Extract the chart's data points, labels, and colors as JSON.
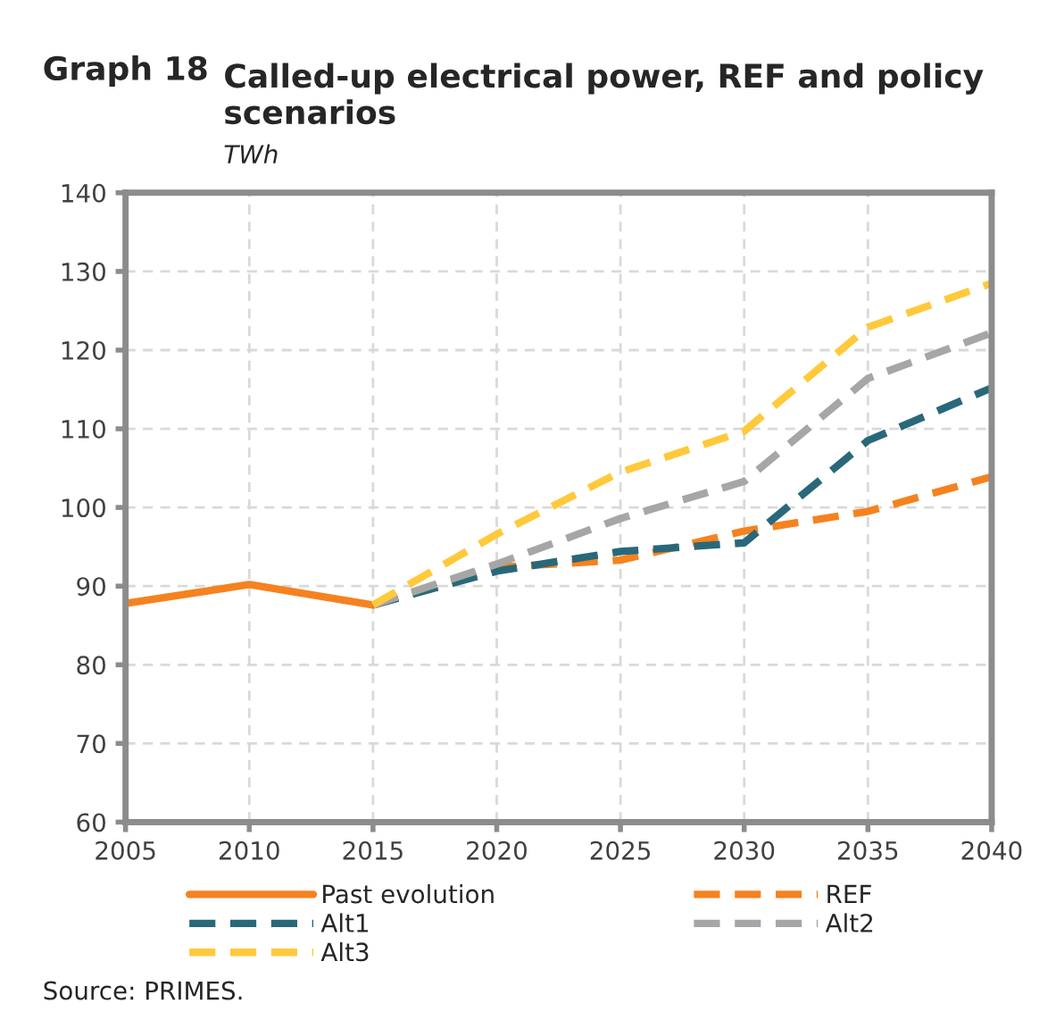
{
  "chart_data": {
    "type": "line",
    "title": "Called-up electrical power, REF and policy scenarios",
    "subtitle": "TWh",
    "annotations": [
      "Graph 18",
      "Source: PRIMES."
    ],
    "x": [
      2005,
      2010,
      2015,
      2020,
      2025,
      2030,
      2035,
      2040
    ],
    "series": [
      {
        "name": "Past evolution",
        "color": "#f5821f",
        "line_style": "solid",
        "values": [
          87.8,
          90.2,
          87.6,
          null,
          null,
          null,
          null,
          null
        ]
      },
      {
        "name": "REF",
        "color": "#f5821f",
        "line_style": "dashed",
        "values": [
          null,
          null,
          87.6,
          92.4,
          93.3,
          97.0,
          99.5,
          103.9
        ]
      },
      {
        "name": "Alt1",
        "color": "#29687a",
        "line_style": "dashed",
        "values": [
          null,
          null,
          87.6,
          91.9,
          94.4,
          95.5,
          108.5,
          115.2
        ]
      },
      {
        "name": "Alt2",
        "color": "#a6a6a6",
        "line_style": "dashed",
        "values": [
          null,
          null,
          87.6,
          92.8,
          98.6,
          103.3,
          116.4,
          122.2
        ]
      },
      {
        "name": "Alt3",
        "color": "#ffc93c",
        "line_style": "dashed",
        "values": [
          null,
          null,
          87.6,
          96.6,
          104.5,
          109.7,
          122.9,
          128.5
        ]
      }
    ],
    "xlim": [
      2005,
      2040
    ],
    "xticks": [
      2005,
      2010,
      2015,
      2020,
      2025,
      2030,
      2035,
      2040
    ],
    "ylim": [
      60,
      140
    ],
    "yticks": [
      60,
      70,
      80,
      90,
      100,
      110,
      120,
      130,
      140
    ],
    "grid": true,
    "legend": "bottom",
    "marker": "none"
  }
}
